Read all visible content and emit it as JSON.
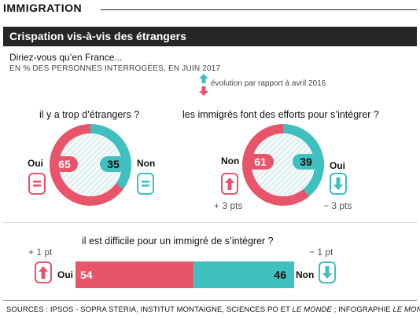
{
  "header": {
    "rubric": "IMMIGRATION",
    "title": "Crispation vis-à-vis des étrangers",
    "question": "Diriez-vous qu’en France...",
    "subtitle": "EN % DES PERSONNES INTERROGÉES, EN JUIN 2017",
    "legend_note": "évolution par rapport à avril 2016"
  },
  "colors": {
    "red": "#e8546a",
    "teal": "#3fbfbf",
    "dark": "#262626"
  },
  "chart_data": [
    {
      "type": "pie",
      "title": "il y a trop d’étrangers ?",
      "categories": [
        "Oui",
        "Non"
      ],
      "values": [
        65,
        35
      ],
      "changes": [
        "=",
        "="
      ],
      "change_labels": [
        "",
        ""
      ]
    },
    {
      "type": "pie",
      "title": "les immigrés font des efforts pour s’intégrer ?",
      "categories": [
        "Non",
        "Oui"
      ],
      "values": [
        61,
        39
      ],
      "changes": [
        "up",
        "down"
      ],
      "change_labels": [
        "+ 3 pts",
        "− 3 pts"
      ]
    },
    {
      "type": "bar",
      "title": "il est difficile pour un immigré de s’intégrer ?",
      "categories": [
        "Oui",
        "Non"
      ],
      "values": [
        54,
        46
      ],
      "changes": [
        "up",
        "down"
      ],
      "change_labels": [
        "+ 1 pt",
        "− 1 pt"
      ]
    }
  ],
  "footer": {
    "sources_prefix": "SOURCES : IPSOS - SOPRA STERIA, INSTITUT MONTAIGNE, SCIENCES PO ET ",
    "sources_italic": "LE MONDE",
    "sources_middle": " ;  INFOGRAPHIE ",
    "sources_italic2": "LE MONDE"
  }
}
